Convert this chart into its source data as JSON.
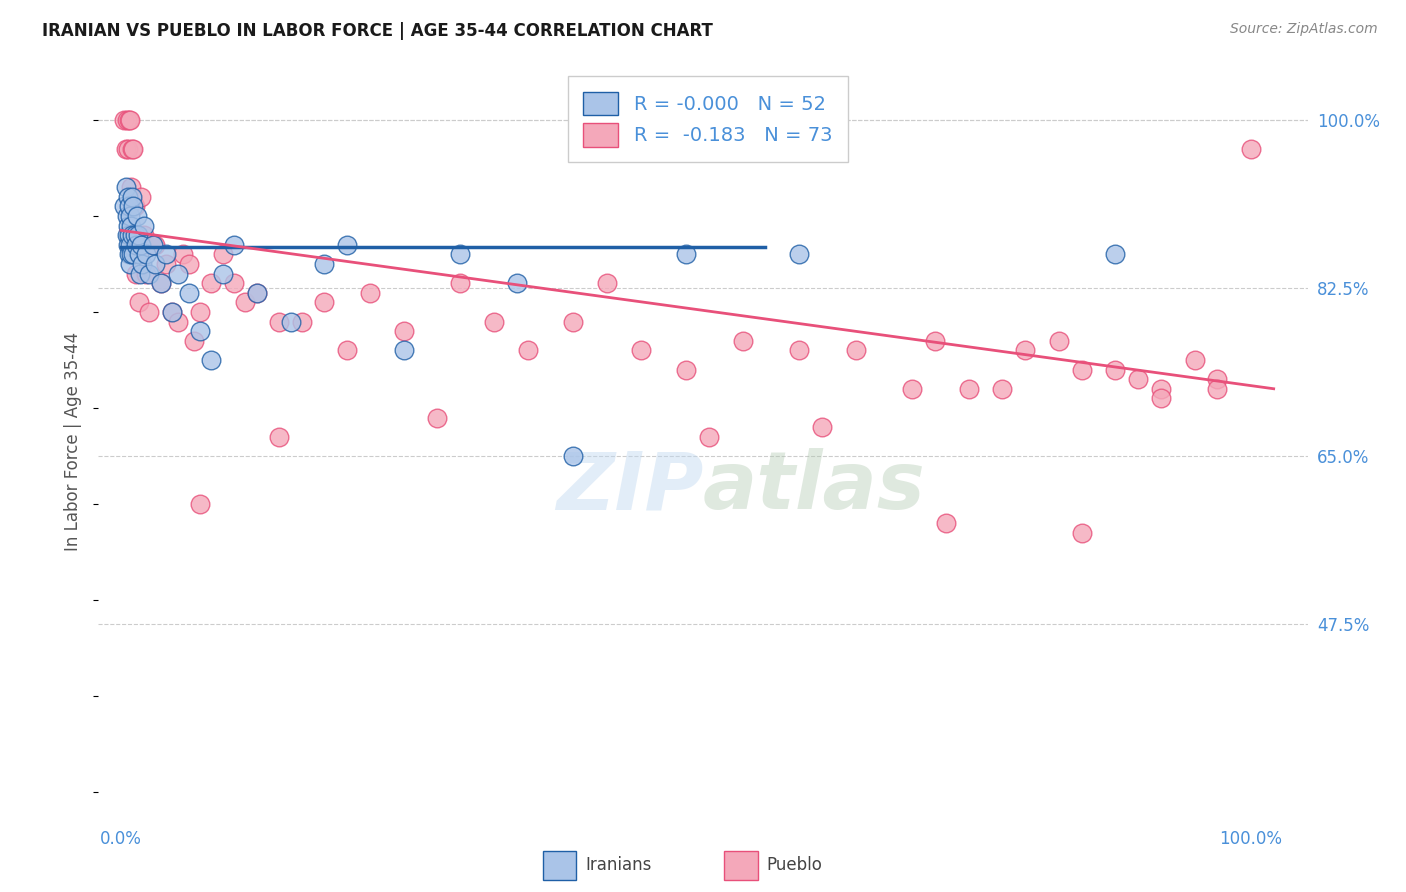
{
  "title": "IRANIAN VS PUEBLO IN LABOR FORCE | AGE 35-44 CORRELATION CHART",
  "source": "Source: ZipAtlas.com",
  "ylabel": "In Labor Force | Age 35-44",
  "ytick_labels": [
    "100.0%",
    "82.5%",
    "65.0%",
    "47.5%"
  ],
  "ytick_values": [
    1.0,
    0.825,
    0.65,
    0.475
  ],
  "xlim": [
    -0.02,
    1.05
  ],
  "ylim": [
    0.27,
    1.06
  ],
  "R_iranian": -0.0,
  "N_iranian": 52,
  "R_pueblo": -0.183,
  "N_pueblo": 73,
  "color_iranian": "#aac4e8",
  "color_pueblo": "#f4a8ba",
  "trendline_color_iranian": "#1f5fa6",
  "trendline_color_pueblo": "#e8507a",
  "background_color": "#ffffff",
  "tick_color": "#4a90d9",
  "iranian_x": [
    0.003,
    0.004,
    0.005,
    0.005,
    0.006,
    0.006,
    0.006,
    0.007,
    0.007,
    0.007,
    0.008,
    0.008,
    0.008,
    0.009,
    0.009,
    0.01,
    0.01,
    0.011,
    0.011,
    0.012,
    0.013,
    0.014,
    0.015,
    0.016,
    0.017,
    0.018,
    0.019,
    0.02,
    0.022,
    0.025,
    0.028,
    0.03,
    0.035,
    0.04,
    0.045,
    0.05,
    0.06,
    0.07,
    0.08,
    0.09,
    0.1,
    0.12,
    0.15,
    0.18,
    0.2,
    0.25,
    0.3,
    0.35,
    0.4,
    0.5,
    0.6,
    0.88
  ],
  "iranian_y": [
    0.91,
    0.93,
    0.9,
    0.88,
    0.92,
    0.89,
    0.87,
    0.91,
    0.88,
    0.86,
    0.9,
    0.87,
    0.85,
    0.89,
    0.86,
    0.92,
    0.88,
    0.91,
    0.86,
    0.88,
    0.87,
    0.9,
    0.88,
    0.86,
    0.84,
    0.87,
    0.85,
    0.89,
    0.86,
    0.84,
    0.87,
    0.85,
    0.83,
    0.86,
    0.8,
    0.84,
    0.82,
    0.78,
    0.75,
    0.84,
    0.87,
    0.82,
    0.79,
    0.85,
    0.87,
    0.76,
    0.86,
    0.83,
    0.65,
    0.86,
    0.86,
    0.86
  ],
  "pueblo_x": [
    0.003,
    0.004,
    0.005,
    0.006,
    0.007,
    0.008,
    0.009,
    0.01,
    0.01,
    0.011,
    0.012,
    0.013,
    0.014,
    0.015,
    0.016,
    0.017,
    0.018,
    0.02,
    0.022,
    0.025,
    0.028,
    0.03,
    0.035,
    0.04,
    0.045,
    0.05,
    0.055,
    0.06,
    0.065,
    0.07,
    0.08,
    0.09,
    0.1,
    0.11,
    0.12,
    0.14,
    0.16,
    0.18,
    0.2,
    0.22,
    0.25,
    0.28,
    0.3,
    0.33,
    0.36,
    0.4,
    0.43,
    0.46,
    0.5,
    0.55,
    0.6,
    0.65,
    0.7,
    0.72,
    0.75,
    0.78,
    0.8,
    0.83,
    0.85,
    0.88,
    0.9,
    0.92,
    0.95,
    0.97,
    1.0,
    0.52,
    0.62,
    0.73,
    0.85,
    0.92,
    0.07,
    0.14,
    0.97
  ],
  "pueblo_y": [
    1.0,
    0.97,
    1.0,
    0.97,
    1.0,
    1.0,
    0.93,
    0.97,
    0.88,
    0.97,
    0.91,
    0.84,
    0.88,
    0.86,
    0.81,
    0.87,
    0.92,
    0.88,
    0.84,
    0.8,
    0.87,
    0.87,
    0.83,
    0.85,
    0.8,
    0.79,
    0.86,
    0.85,
    0.77,
    0.8,
    0.83,
    0.86,
    0.83,
    0.81,
    0.82,
    0.79,
    0.79,
    0.81,
    0.76,
    0.82,
    0.78,
    0.69,
    0.83,
    0.79,
    0.76,
    0.79,
    0.83,
    0.76,
    0.74,
    0.77,
    0.76,
    0.76,
    0.72,
    0.77,
    0.72,
    0.72,
    0.76,
    0.77,
    0.74,
    0.74,
    0.73,
    0.72,
    0.75,
    0.73,
    0.97,
    0.67,
    0.68,
    0.58,
    0.57,
    0.71,
    0.6,
    0.67,
    0.72
  ],
  "iranian_trend_x": [
    0.0,
    0.57
  ],
  "iranian_trend_y": [
    0.868,
    0.868
  ],
  "pueblo_trend_x": [
    0.0,
    1.02
  ],
  "pueblo_trend_y": [
    0.885,
    0.72
  ]
}
